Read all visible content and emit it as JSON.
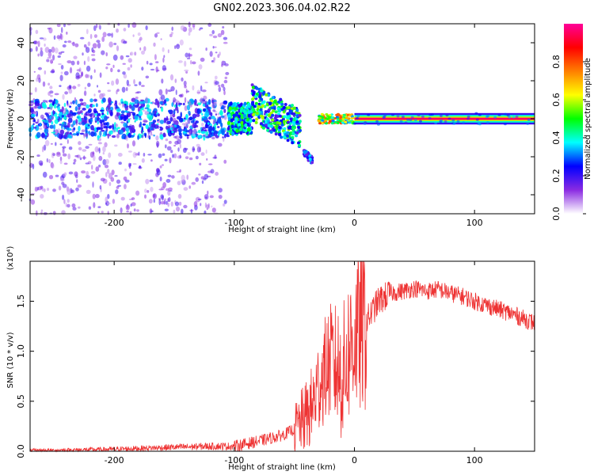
{
  "title": "GN02.2023.306.04.02.R22",
  "chart_data": [
    {
      "type": "heatmap",
      "xlabel": "Height of straight line (km)",
      "ylabel": "Frequency (Hz)",
      "xlim": [
        -270,
        150
      ],
      "ylim": [
        -50,
        50
      ],
      "x_ticks": [
        -200,
        -100,
        0,
        100
      ],
      "y_ticks": [
        -40,
        -20,
        0,
        20,
        40
      ],
      "colorbar": {
        "label": "Normalized spectral amplitude",
        "range": [
          0,
          1
        ],
        "ticks": [
          0.0,
          0.2,
          0.4,
          0.6,
          0.8
        ],
        "colors": [
          "#ffffff",
          "#8a2be2",
          "#0000ff",
          "#00ffff",
          "#00ff00",
          "#ffff00",
          "#ff7f00",
          "#ff0000",
          "#ff0099"
        ]
      },
      "zones": [
        {
          "x": [
            -270,
            -105
          ],
          "freq_spread": [
            -50,
            50
          ],
          "core_band": [
            -10,
            10
          ],
          "amplitude": 0.3
        },
        {
          "x": [
            -105,
            -85
          ],
          "freq_spread": [
            -10,
            10
          ],
          "core_band": [
            -5,
            5
          ],
          "amplitude": 0.45
        },
        {
          "x": [
            -85,
            -45
          ],
          "freq_center": [
            8,
            -5
          ],
          "core_band": [
            -10,
            10
          ],
          "amplitude": 0.5
        },
        {
          "x": [
            -42,
            -35
          ],
          "freq_center": [
            -18,
            -22
          ],
          "amplitude": 0.3
        },
        {
          "x": [
            -30,
            0
          ],
          "freq_center": [
            0,
            0
          ],
          "amplitude": 0.85
        },
        {
          "x": [
            0,
            150
          ],
          "freq_center": [
            0,
            0
          ],
          "amplitude": 0.95
        }
      ]
    },
    {
      "type": "line",
      "xlabel": "Height of straight line (km)",
      "ylabel": "SNR (10 * v/v)",
      "multiplier_label": "(x10⁴)",
      "xlim": [
        -270,
        150
      ],
      "ylim": [
        0,
        1.9
      ],
      "x_ticks": [
        -200,
        -100,
        0,
        100
      ],
      "y_ticks": [
        0.0,
        0.5,
        1.0,
        1.5
      ],
      "series": [
        {
          "color": "#ee3333",
          "x": [
            -270,
            -250,
            -200,
            -150,
            -120,
            -100,
            -80,
            -60,
            -50,
            -40,
            -35,
            -30,
            -25,
            -20,
            -15,
            -10,
            -5,
            0,
            5,
            10,
            15,
            20,
            30,
            40,
            50,
            60,
            70,
            80,
            90,
            100,
            110,
            120,
            130,
            140,
            150
          ],
          "values": [
            0.01,
            0.01,
            0.02,
            0.04,
            0.05,
            0.05,
            0.1,
            0.16,
            0.22,
            0.35,
            0.45,
            0.65,
            0.8,
            0.9,
            0.85,
            0.75,
            1.0,
            1.15,
            1.2,
            1.3,
            1.4,
            1.5,
            1.58,
            1.6,
            1.63,
            1.6,
            1.62,
            1.58,
            1.55,
            1.5,
            1.46,
            1.42,
            1.38,
            1.33,
            1.28
          ]
        }
      ]
    }
  ]
}
